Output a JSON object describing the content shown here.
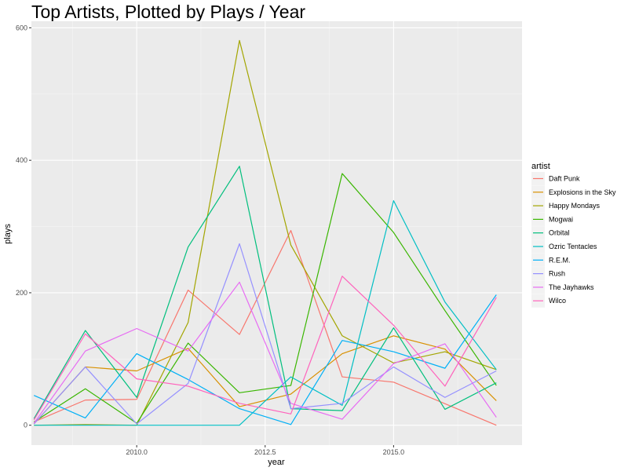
{
  "chart_data": {
    "type": "line",
    "title": "Top Artists, Plotted by Plays / Year",
    "xlabel": "year",
    "ylabel": "plays",
    "xlim": [
      2007.95,
      2017.5
    ],
    "ylim": [
      -30,
      610
    ],
    "x_ticks": [
      2010.0,
      2012.5,
      2015.0
    ],
    "x_tick_labels": [
      "2010.0",
      "2012.5",
      "2015.0"
    ],
    "y_ticks": [
      0,
      200,
      400,
      600
    ],
    "y_tick_labels": [
      "0",
      "200",
      "400",
      "600"
    ],
    "grid": true,
    "legend_title": "artist",
    "legend_position": "right",
    "series": [
      {
        "name": "Daft Punk",
        "color": "#F8766D",
        "x": [
          2008,
          2009,
          2010,
          2011,
          2012,
          2013,
          2014,
          2015,
          2017
        ],
        "y": [
          5,
          38,
          39,
          204,
          137,
          294,
          73,
          65,
          0
        ]
      },
      {
        "name": "Explosions in the Sky",
        "color": "#D89000",
        "x": [
          2008,
          2009,
          2010,
          2011,
          2012,
          2013,
          2014,
          2015,
          2016,
          2017
        ],
        "y": [
          2,
          88,
          82,
          116,
          28,
          47,
          108,
          135,
          115,
          37
        ]
      },
      {
        "name": "Happy Mondays",
        "color": "#A3A500",
        "x": [
          2008,
          2009,
          2010,
          2011,
          2012,
          2013,
          2014,
          2015,
          2016,
          2017
        ],
        "y": [
          0,
          1,
          0,
          155,
          581,
          272,
          135,
          94,
          111,
          84
        ]
      },
      {
        "name": "Mogwai",
        "color": "#39B600",
        "x": [
          2008,
          2009,
          2010,
          2011,
          2012,
          2013,
          2014,
          2015,
          2016,
          2017
        ],
        "y": [
          5,
          55,
          3,
          124,
          49,
          60,
          380,
          291,
          173,
          60
        ]
      },
      {
        "name": "Orbital",
        "color": "#00BF7D",
        "x": [
          2008,
          2009,
          2010,
          2011,
          2012,
          2013,
          2014,
          2015,
          2016,
          2017
        ],
        "y": [
          10,
          143,
          42,
          269,
          391,
          25,
          22,
          147,
          24,
          64
        ]
      },
      {
        "name": "Ozric Tentacles",
        "color": "#00BFC4",
        "x": [
          2008,
          2009,
          2010,
          2011,
          2012,
          2013,
          2014,
          2015,
          2016,
          2017
        ],
        "y": [
          0,
          0,
          0,
          0,
          0,
          73,
          30,
          339,
          186,
          84
        ]
      },
      {
        "name": "R.E.M.",
        "color": "#00B0F6",
        "x": [
          2008,
          2009,
          2010,
          2011,
          2012,
          2013,
          2014,
          2015,
          2016,
          2017
        ],
        "y": [
          45,
          11,
          108,
          69,
          25,
          1,
          128,
          111,
          86,
          197
        ]
      },
      {
        "name": "Rush",
        "color": "#9590FF",
        "x": [
          2008,
          2009,
          2010,
          2011,
          2012,
          2013,
          2014,
          2015,
          2016,
          2017
        ],
        "y": [
          2,
          88,
          2,
          63,
          274,
          25,
          33,
          88,
          42,
          82
        ]
      },
      {
        "name": "The Jayhawks",
        "color": "#E76BF3",
        "x": [
          2008,
          2009,
          2010,
          2011,
          2012,
          2013,
          2014,
          2015,
          2016,
          2017
        ],
        "y": [
          3,
          112,
          146,
          112,
          216,
          33,
          9,
          93,
          123,
          12
        ]
      },
      {
        "name": "Wilco",
        "color": "#FF62BC",
        "x": [
          2008,
          2009,
          2010,
          2011,
          2012,
          2013,
          2014,
          2015,
          2016,
          2017
        ],
        "y": [
          8,
          138,
          70,
          59,
          33,
          17,
          225,
          151,
          59,
          193
        ]
      }
    ]
  }
}
